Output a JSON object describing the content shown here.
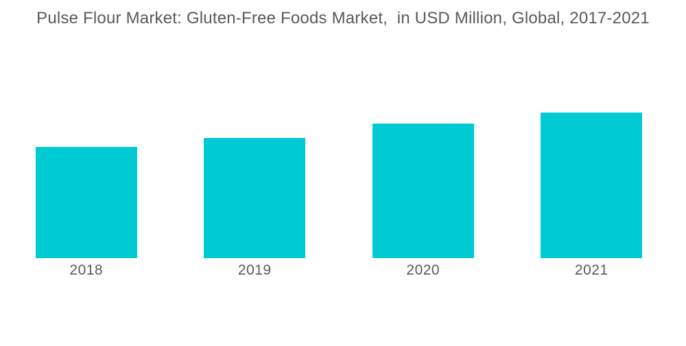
{
  "title": "Pulse Flour Market: Gluten-Free Foods Market,  in USD Million, Global, 2017-2021",
  "colors": {
    "background": "#ffffff",
    "bar": "#00cbd2",
    "title_text": "#58595b",
    "label_text": "#595959"
  },
  "chart_data": {
    "type": "bar",
    "title": "Pulse Flour Market: Gluten-Free Foods Market,  in USD Million, Global, 2017-2021",
    "units_from_title": "USD Million",
    "categories": [
      "2018",
      "2019",
      "2020",
      "2021"
    ],
    "values": [
      162,
      175,
      196,
      212
    ],
    "values_unit": "relative-height-px (value axis not displayed on chart)",
    "xlabel": "",
    "ylabel": "",
    "value_axis_visible": false,
    "gridlines": false,
    "legend": "none",
    "bar_color": "#00cbd2"
  }
}
